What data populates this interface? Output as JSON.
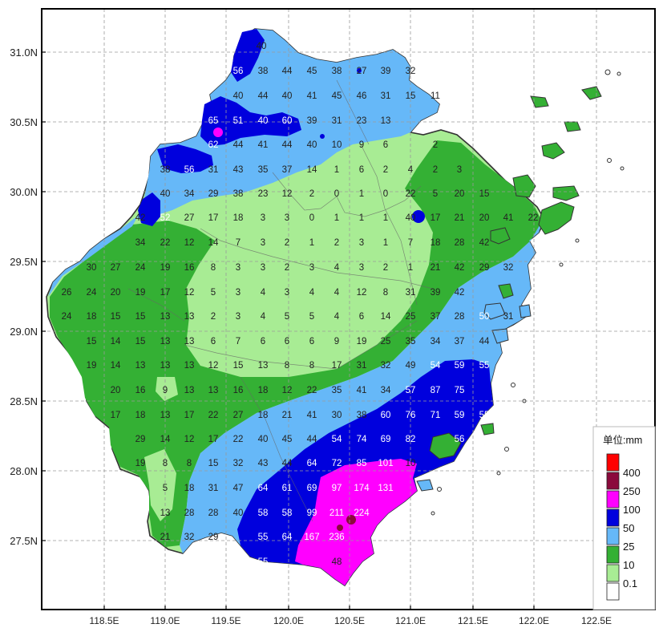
{
  "map": {
    "lat_labels": [
      "31.0N",
      "30.5N",
      "30.0N",
      "29.5N",
      "29.0N",
      "28.5N",
      "28.0N",
      "27.5N"
    ],
    "lon_labels": [
      "118.5E",
      "119.0E",
      "119.5E",
      "120.0E",
      "120.5E",
      "121.0E",
      "121.5E",
      "122.0E",
      "122.5E"
    ],
    "grid": true
  },
  "legend": {
    "title": "单位:mm",
    "entries": [
      {
        "label": "400",
        "color": "#ff0000"
      },
      {
        "label": "250",
        "color": "#8b0a3c"
      },
      {
        "label": "100",
        "color": "#ff00ff"
      },
      {
        "label": "50",
        "color": "#0000dd"
      },
      {
        "label": "25",
        "color": "#66b8f8"
      },
      {
        "label": "10",
        "color": "#34b034"
      },
      {
        "label": "0.1",
        "color": "#a8ec94"
      },
      {
        "label": "",
        "color": "#ffffff"
      }
    ]
  },
  "rain_colors": {
    "none": "#ffffff",
    "light": "#a8ec94",
    "moderate": "#34b034",
    "heavy": "#66b8f8",
    "storm": "#0000dd",
    "heavy_storm": "#ff00ff",
    "extreme": "#8b0a3c",
    "max": "#ff0000"
  },
  "station_rows": [
    [
      "40"
    ],
    [
      "56",
      "38",
      "44",
      "45",
      "38",
      "27",
      "39",
      "32"
    ],
    [
      "40",
      "44",
      "40",
      "41",
      "45",
      "46",
      "31",
      "15",
      "11"
    ],
    [
      "65",
      "51",
      "40",
      "60",
      "39",
      "31",
      "23",
      "13"
    ],
    [
      "62",
      "44",
      "41",
      "44",
      "40",
      "10",
      "9",
      "6",
      "2"
    ],
    [
      "38",
      "56",
      "31",
      "43",
      "35",
      "37",
      "14",
      "1",
      "6",
      "2",
      "4",
      "2",
      "3"
    ],
    [
      "40",
      "34",
      "29",
      "38",
      "23",
      "12",
      "2",
      "0",
      "1",
      "0",
      "22",
      "5",
      "20",
      "15"
    ],
    [
      "42",
      "52",
      "27",
      "17",
      "18",
      "3",
      "3",
      "0",
      "1",
      "1",
      "1",
      "40",
      "17",
      "21",
      "20",
      "41",
      "22"
    ],
    [
      "34",
      "22",
      "12",
      "14",
      "7",
      "3",
      "2",
      "1",
      "2",
      "3",
      "1",
      "7",
      "18",
      "28",
      "42"
    ],
    [
      "30",
      "27",
      "24",
      "19",
      "16",
      "8",
      "3",
      "3",
      "2",
      "3",
      "4",
      "3",
      "2",
      "1",
      "21",
      "42",
      "29",
      "32"
    ],
    [
      "26",
      "24",
      "20",
      "19",
      "17",
      "12",
      "5",
      "3",
      "4",
      "3",
      "4",
      "4",
      "12",
      "8",
      "31",
      "39",
      "42"
    ],
    [
      "24",
      "18",
      "15",
      "15",
      "13",
      "13",
      "2",
      "3",
      "4",
      "5",
      "5",
      "4",
      "6",
      "14",
      "25",
      "37",
      "28",
      "50",
      "31"
    ],
    [
      "15",
      "14",
      "15",
      "13",
      "13",
      "6",
      "7",
      "6",
      "6",
      "6",
      "9",
      "19",
      "25",
      "35",
      "34",
      "37",
      "44"
    ],
    [
      "19",
      "14",
      "13",
      "13",
      "13",
      "12",
      "15",
      "13",
      "8",
      "8",
      "17",
      "31",
      "32",
      "49",
      "54",
      "59",
      "55"
    ],
    [
      "20",
      "16",
      "9",
      "13",
      "13",
      "16",
      "18",
      "12",
      "22",
      "35",
      "41",
      "34",
      "57",
      "87",
      "75"
    ],
    [
      "17",
      "18",
      "13",
      "17",
      "22",
      "27",
      "18",
      "21",
      "41",
      "30",
      "38",
      "60",
      "76",
      "71",
      "59",
      "55"
    ],
    [
      "29",
      "14",
      "12",
      "17",
      "22",
      "40",
      "45",
      "44",
      "54",
      "74",
      "69",
      "82",
      "56"
    ],
    [
      "19",
      "8",
      "8",
      "15",
      "32",
      "43",
      "44",
      "64",
      "72",
      "85",
      "101",
      "10"
    ],
    [
      "5",
      "18",
      "31",
      "47",
      "64",
      "61",
      "69",
      "97",
      "174",
      "131"
    ],
    [
      "13",
      "28",
      "28",
      "40",
      "58",
      "58",
      "99",
      "211",
      "224"
    ],
    [
      "21",
      "32",
      "29",
      "55",
      "64",
      "167",
      "236"
    ],
    [
      "55",
      "48"
    ]
  ]
}
